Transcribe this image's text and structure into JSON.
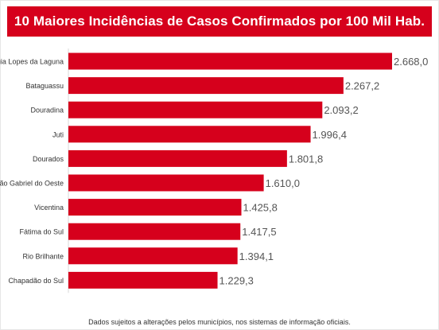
{
  "colors": {
    "bar": "#d6001c",
    "title_bg": "#d6001c",
    "title_text": "#ffffff",
    "label_text": "#333333",
    "value_text": "#555555"
  },
  "title": "10 Maiores Incidências de Casos Confirmados por 100 Mil Hab.",
  "footnote": "Dados sujeitos a alterações pelos municípios, nos sistemas de informação oficiais.",
  "chart_data": {
    "type": "bar",
    "orientation": "horizontal",
    "title": "10 Maiores Incidências de Casos Confirmados por 100 Mil Hab.",
    "categories": [
      "Guia Lopes da Laguna",
      "Bataguassu",
      "Douradina",
      "Juti",
      "Dourados",
      "São Gabriel do Oeste",
      "Vicentina",
      "Fátima do Sul",
      "Rio Brilhante",
      "Chapadão do Sul"
    ],
    "values": [
      2668.0,
      2267.2,
      2093.2,
      1996.4,
      1801.8,
      1610.0,
      1425.8,
      1417.5,
      1394.1,
      1229.3
    ],
    "value_labels": [
      "2.668,0",
      "2.267,2",
      "2.093,2",
      "1.996,4",
      "1.801,8",
      "1.610,0",
      "1.425,8",
      "1.417,5",
      "1.394,1",
      "1.229,3"
    ],
    "xlim": [
      0,
      2668.0
    ],
    "grid": false,
    "legend": "none"
  }
}
